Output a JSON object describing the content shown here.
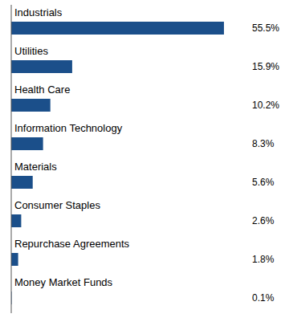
{
  "chart_data": {
    "type": "bar",
    "orientation": "horizontal",
    "categories": [
      "Industrials",
      "Utilities",
      "Health Care",
      "Information Technology",
      "Materials",
      "Consumer Staples",
      "Repurchase Agreements",
      "Money Market Funds"
    ],
    "values": [
      55.5,
      15.9,
      10.2,
      8.3,
      5.6,
      2.6,
      1.8,
      0.1
    ],
    "value_labels": [
      "55.5%",
      "15.9%",
      "10.2%",
      "8.3%",
      "5.6%",
      "2.6%",
      "1.8%",
      "0.1%"
    ],
    "data_labels": true,
    "color": "#1b4f8a",
    "xlim": [
      0,
      62
    ],
    "tick_labels": false,
    "grid": false
  }
}
